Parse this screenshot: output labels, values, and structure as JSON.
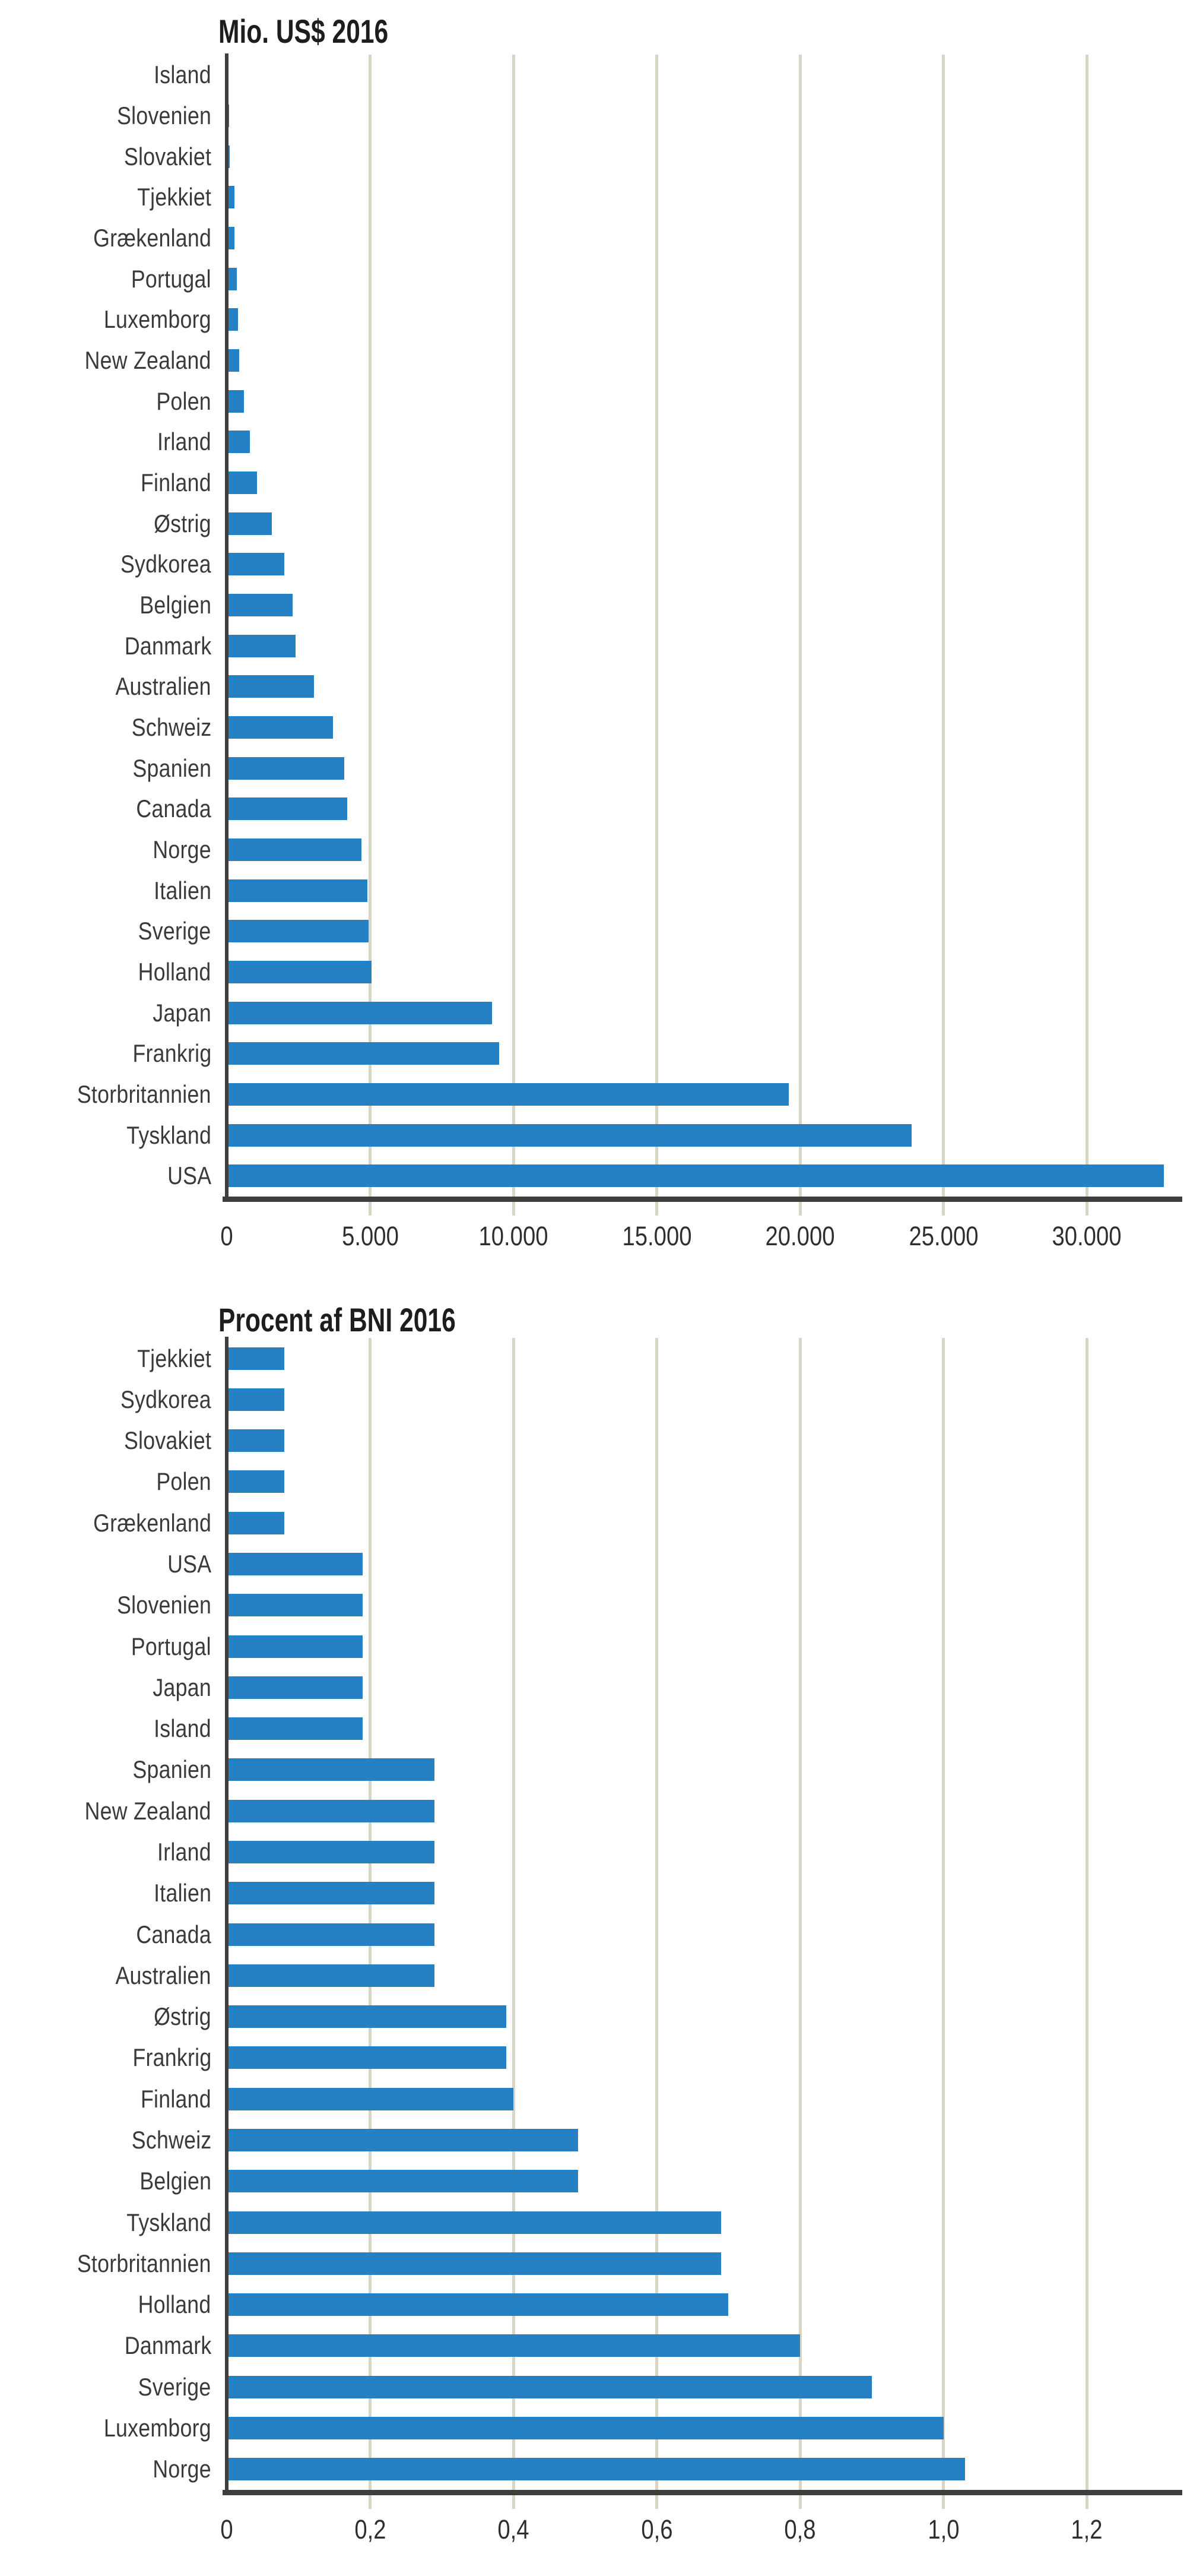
{
  "colors": {
    "bar_blue": "#2580c4",
    "axis_dark": "#3e3e3e",
    "gridline": "#d9d5c4",
    "label_text": "#3a3a3a",
    "tick_text": "#2e2e2e",
    "title_text": "#1d1d1d",
    "background": "#ffffff"
  },
  "chart_data": [
    {
      "type": "bar",
      "orientation": "horizontal",
      "title": "Mio. US$ 2016",
      "xlabel": "",
      "ylabel": "",
      "xlim": [
        0,
        33250
      ],
      "grid": true,
      "legend": "none",
      "x_ticks": [
        {
          "label": "0",
          "value": 0
        },
        {
          "label": "5.000",
          "value": 5000
        },
        {
          "label": "10.000",
          "value": 10000
        },
        {
          "label": "15.000",
          "value": 15000
        },
        {
          "label": "20.000",
          "value": 20000
        },
        {
          "label": "25.000",
          "value": 25000
        },
        {
          "label": "30.000",
          "value": 30000
        }
      ],
      "bars": [
        {
          "label": "Island",
          "value": 40
        },
        {
          "label": "Slovenien",
          "value": 80
        },
        {
          "label": "Slovakiet",
          "value": 110
        },
        {
          "label": "Tjekkiet",
          "value": 260
        },
        {
          "label": "Grækenland",
          "value": 270
        },
        {
          "label": "Portugal",
          "value": 345
        },
        {
          "label": "Luxemborg",
          "value": 390
        },
        {
          "label": "New Zealand",
          "value": 440
        },
        {
          "label": "Polen",
          "value": 605
        },
        {
          "label": "Irland",
          "value": 800
        },
        {
          "label": "Finland",
          "value": 1060
        },
        {
          "label": "Østrig",
          "value": 1570
        },
        {
          "label": "Sydkorea",
          "value": 2000
        },
        {
          "label": "Belgien",
          "value": 2300
        },
        {
          "label": "Danmark",
          "value": 2400
        },
        {
          "label": "Australien",
          "value": 3050
        },
        {
          "label": "Schweiz",
          "value": 3700
        },
        {
          "label": "Spanien",
          "value": 4100
        },
        {
          "label": "Canada",
          "value": 4200
        },
        {
          "label": "Norge",
          "value": 4700
        },
        {
          "label": "Italien",
          "value": 4900
        },
        {
          "label": "Sverige",
          "value": 4950
        },
        {
          "label": "Holland",
          "value": 5050
        },
        {
          "label": "Japan",
          "value": 9250
        },
        {
          "label": "Frankrig",
          "value": 9500
        },
        {
          "label": "Storbritannien",
          "value": 19600
        },
        {
          "label": "Tyskland",
          "value": 23900
        },
        {
          "label": "USA",
          "value": 32700
        }
      ]
    },
    {
      "type": "bar",
      "orientation": "horizontal",
      "title": "Procent af BNI 2016",
      "xlabel": "",
      "ylabel": "",
      "xlim": [
        0,
        1.33
      ],
      "grid": true,
      "legend": "none",
      "x_ticks": [
        {
          "label": "0",
          "value": 0
        },
        {
          "label": "0,2",
          "value": 0.2
        },
        {
          "label": "0,4",
          "value": 0.4
        },
        {
          "label": "0,6",
          "value": 0.6
        },
        {
          "label": "0,8",
          "value": 0.8
        },
        {
          "label": "1,0",
          "value": 1.0
        },
        {
          "label": "1,2",
          "value": 1.2
        }
      ],
      "bars": [
        {
          "label": "Tjekkiet",
          "value": 0.08
        },
        {
          "label": "Sydkorea",
          "value": 0.08
        },
        {
          "label": "Slovakiet",
          "value": 0.08
        },
        {
          "label": "Polen",
          "value": 0.08
        },
        {
          "label": "Grækenland",
          "value": 0.08
        },
        {
          "label": "USA",
          "value": 0.19
        },
        {
          "label": "Slovenien",
          "value": 0.19
        },
        {
          "label": "Portugal",
          "value": 0.19
        },
        {
          "label": "Japan",
          "value": 0.19
        },
        {
          "label": "Island",
          "value": 0.19
        },
        {
          "label": "Spanien",
          "value": 0.29
        },
        {
          "label": "New Zealand",
          "value": 0.29
        },
        {
          "label": "Irland",
          "value": 0.29
        },
        {
          "label": "Italien",
          "value": 0.29
        },
        {
          "label": "Canada",
          "value": 0.29
        },
        {
          "label": "Australien",
          "value": 0.29
        },
        {
          "label": "Østrig",
          "value": 0.39
        },
        {
          "label": "Frankrig",
          "value": 0.39
        },
        {
          "label": "Finland",
          "value": 0.4
        },
        {
          "label": "Schweiz",
          "value": 0.49
        },
        {
          "label": "Belgien",
          "value": 0.49
        },
        {
          "label": "Tyskland",
          "value": 0.69
        },
        {
          "label": "Storbritannien",
          "value": 0.69
        },
        {
          "label": "Holland",
          "value": 0.7
        },
        {
          "label": "Danmark",
          "value": 0.8
        },
        {
          "label": "Sverige",
          "value": 0.9
        },
        {
          "label": "Luxemborg",
          "value": 1.0
        },
        {
          "label": "Norge",
          "value": 1.03
        }
      ]
    }
  ]
}
